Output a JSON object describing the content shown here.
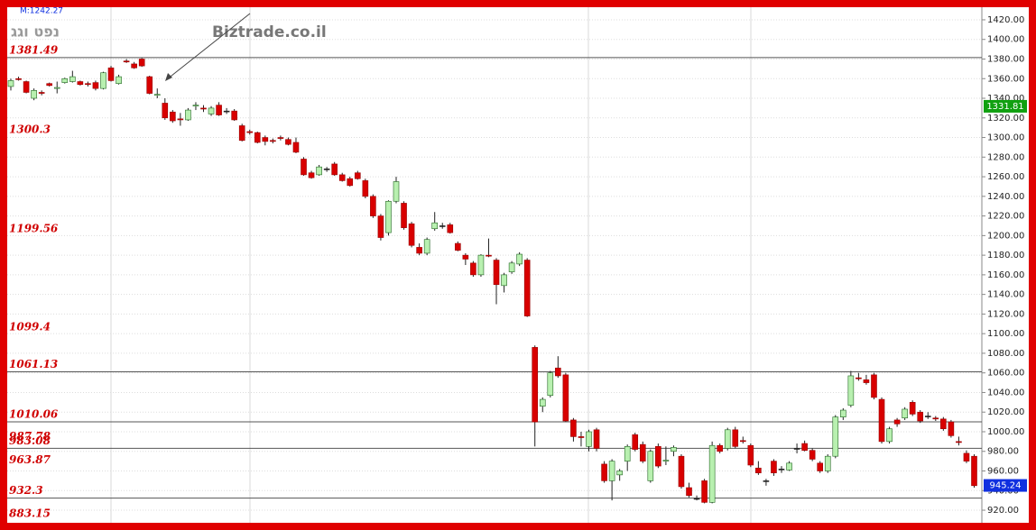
{
  "chart_data": {
    "type": "candlestick",
    "title": "נפט וגג",
    "subtitle": "M:1242.27",
    "watermark": "Biztrade.co.il",
    "ylim": [
      909,
      1431
    ],
    "yticks": [
      {
        "value": 920,
        "label": "920.00"
      },
      {
        "value": 940,
        "label": "940.00"
      },
      {
        "value": 960,
        "label": "960.00"
      },
      {
        "value": 980,
        "label": "980.00"
      },
      {
        "value": 1000,
        "label": "1000.00"
      },
      {
        "value": 1020,
        "label": "1020.00"
      },
      {
        "value": 1040,
        "label": "1040.00"
      },
      {
        "value": 1060,
        "label": "1060.00"
      },
      {
        "value": 1080,
        "label": "1080.00"
      },
      {
        "value": 1100,
        "label": "1100.00"
      },
      {
        "value": 1120,
        "label": "1120.00"
      },
      {
        "value": 1140,
        "label": "1140.00"
      },
      {
        "value": 1160,
        "label": "1160.00"
      },
      {
        "value": 1180,
        "label": "1180.00"
      },
      {
        "value": 1200,
        "label": "1200.00"
      },
      {
        "value": 1220,
        "label": "1220.00"
      },
      {
        "value": 1240,
        "label": "1240.00"
      },
      {
        "value": 1260,
        "label": "1260.00"
      },
      {
        "value": 1280,
        "label": "1280.00"
      },
      {
        "value": 1300,
        "label": "1300.00"
      },
      {
        "value": 1320,
        "label": "1320.00"
      },
      {
        "value": 1340,
        "label": "1340.00"
      },
      {
        "value": 1360,
        "label": "1360.00"
      },
      {
        "value": 1380,
        "label": "1380.00"
      },
      {
        "value": 1400,
        "label": "1400.00"
      },
      {
        "value": 1420,
        "label": "1420.00"
      }
    ],
    "grid": true,
    "up_color": "#b8f0b0",
    "down_color": "#d80000",
    "levels": [
      {
        "value": 1381.49,
        "line": true
      },
      {
        "value": 1300.3,
        "line": false
      },
      {
        "value": 1199.56,
        "line": false
      },
      {
        "value": 1099.4,
        "line": false
      },
      {
        "value": 1061.13,
        "line": true
      },
      {
        "value": 1010.06,
        "line": true
      },
      {
        "value": 987.78,
        "line": false
      },
      {
        "value": 983.08,
        "line": true
      },
      {
        "value": 963.87,
        "line": false
      },
      {
        "value": 932.3,
        "line": true
      },
      {
        "value": 883.15,
        "line": false
      }
    ],
    "price_tags": [
      {
        "value": 1331.81,
        "color": "#10a010"
      },
      {
        "value": 945.24,
        "color": "#1030e0"
      }
    ],
    "open": [
      1352,
      1360,
      1357,
      1340,
      1346,
      1355,
      1350,
      1356,
      1357,
      1357,
      1355,
      1356,
      1350,
      1371,
      1355,
      1378,
      1375,
      1380,
      1362,
      1343,
      1335,
      1326,
      1319,
      1318,
      1332,
      1330,
      1324,
      1333,
      1327,
      1327,
      1312,
      1306,
      1305,
      1300,
      1297,
      1300,
      1298,
      1295,
      1278,
      1264,
      1262,
      1268,
      1273,
      1262,
      1258,
      1264,
      1256,
      1240,
      1220,
      1203,
      1235,
      1233,
      1212,
      1188,
      1182,
      1207,
      1210,
      1211,
      1192,
      1180,
      1172,
      1160,
      1180,
      1175,
      1149,
      1163,
      1171,
      1175,
      1086,
      1026,
      1037,
      1065,
      1058,
      1012,
      995,
      985,
      1002,
      967,
      950,
      956,
      970,
      997,
      987,
      950,
      985,
      970,
      980,
      975,
      943,
      932,
      950,
      928,
      986,
      983,
      1002,
      991,
      986,
      963,
      950,
      970,
      962,
      961,
      983,
      988,
      981,
      968,
      960,
      975,
      1015,
      1027,
      1055,
      1053,
      1058,
      1033,
      990,
      1012,
      1014,
      1030,
      1020,
      1016,
      1014,
      1013,
      1010,
      990,
      978,
      975
    ],
    "high": [
      1360,
      1362,
      1358,
      1350,
      1348,
      1356,
      1357,
      1361,
      1368,
      1358,
      1357,
      1358,
      1367,
      1373,
      1364,
      1380,
      1377,
      1381,
      1363,
      1350,
      1340,
      1328,
      1325,
      1330,
      1336,
      1333,
      1332,
      1336,
      1330,
      1329,
      1314,
      1308,
      1306,
      1302,
      1299,
      1302,
      1300,
      1300,
      1280,
      1266,
      1272,
      1270,
      1275,
      1264,
      1260,
      1266,
      1258,
      1242,
      1222,
      1236,
      1260,
      1235,
      1214,
      1192,
      1198,
      1224,
      1213,
      1213,
      1194,
      1182,
      1174,
      1181,
      1197,
      1177,
      1162,
      1174,
      1183,
      1177,
      1088,
      1035,
      1062,
      1077,
      1060,
      1014,
      1000,
      1002,
      1004,
      970,
      972,
      962,
      987,
      999,
      990,
      982,
      988,
      985,
      986,
      977,
      948,
      935,
      952,
      990,
      988,
      1004,
      1005,
      995,
      988,
      970,
      952,
      972,
      965,
      970,
      988,
      991,
      983,
      970,
      977,
      1017,
      1024,
      1062,
      1060,
      1058,
      1060,
      1035,
      1005,
      1014,
      1025,
      1032,
      1022,
      1020,
      1016,
      1015,
      1012,
      995,
      981,
      977
    ],
    "low": [
      1348,
      1358,
      1345,
      1338,
      1343,
      1352,
      1345,
      1355,
      1356,
      1353,
      1352,
      1348,
      1349,
      1357,
      1354,
      1376,
      1370,
      1372,
      1344,
      1340,
      1318,
      1315,
      1312,
      1317,
      1328,
      1326,
      1322,
      1322,
      1324,
      1317,
      1296,
      1303,
      1294,
      1292,
      1294,
      1297,
      1292,
      1284,
      1261,
      1258,
      1261,
      1265,
      1261,
      1255,
      1250,
      1257,
      1238,
      1218,
      1195,
      1200,
      1233,
      1206,
      1188,
      1180,
      1180,
      1205,
      1207,
      1202,
      1184,
      1170,
      1158,
      1158,
      1178,
      1130,
      1142,
      1161,
      1169,
      1117,
      985,
      1020,
      1035,
      1055,
      1010,
      990,
      985,
      980,
      980,
      948,
      930,
      950,
      960,
      980,
      968,
      948,
      963,
      966,
      975,
      942,
      933,
      930,
      927,
      927,
      978,
      981,
      983,
      988,
      964,
      956,
      945,
      955,
      958,
      960,
      978,
      980,
      970,
      958,
      958,
      973,
      1012,
      1025,
      1052,
      1048,
      1033,
      988,
      988,
      1005,
      1012,
      1016,
      1009,
      1013,
      1011,
      1001,
      994,
      986,
      968,
      943
    ],
    "close": [
      1358,
      1359,
      1346,
      1348,
      1345,
      1353,
      1351,
      1360,
      1362,
      1354,
      1354,
      1350,
      1366,
      1358,
      1362,
      1377,
      1371,
      1373,
      1345,
      1344,
      1320,
      1317,
      1318,
      1328,
      1333,
      1329,
      1330,
      1323,
      1327,
      1318,
      1297,
      1305,
      1295,
      1296,
      1296,
      1299,
      1293,
      1285,
      1262,
      1259,
      1270,
      1268,
      1262,
      1256,
      1251,
      1258,
      1240,
      1220,
      1198,
      1235,
      1255,
      1208,
      1190,
      1182,
      1196,
      1213,
      1210,
      1203,
      1185,
      1176,
      1160,
      1180,
      1179,
      1150,
      1160,
      1172,
      1181,
      1118,
      1010,
      1033,
      1060,
      1057,
      1011,
      995,
      994,
      1000,
      983,
      950,
      970,
      960,
      985,
      982,
      970,
      980,
      965,
      971,
      984,
      944,
      935,
      932,
      928,
      986,
      980,
      1002,
      985,
      990,
      966,
      958,
      950,
      958,
      962,
      968,
      983,
      981,
      972,
      960,
      975,
      1015,
      1022,
      1057,
      1054,
      1050,
      1035,
      990,
      1003,
      1008,
      1023,
      1018,
      1011,
      1016,
      1013,
      1003,
      996,
      989,
      970,
      945
    ]
  }
}
